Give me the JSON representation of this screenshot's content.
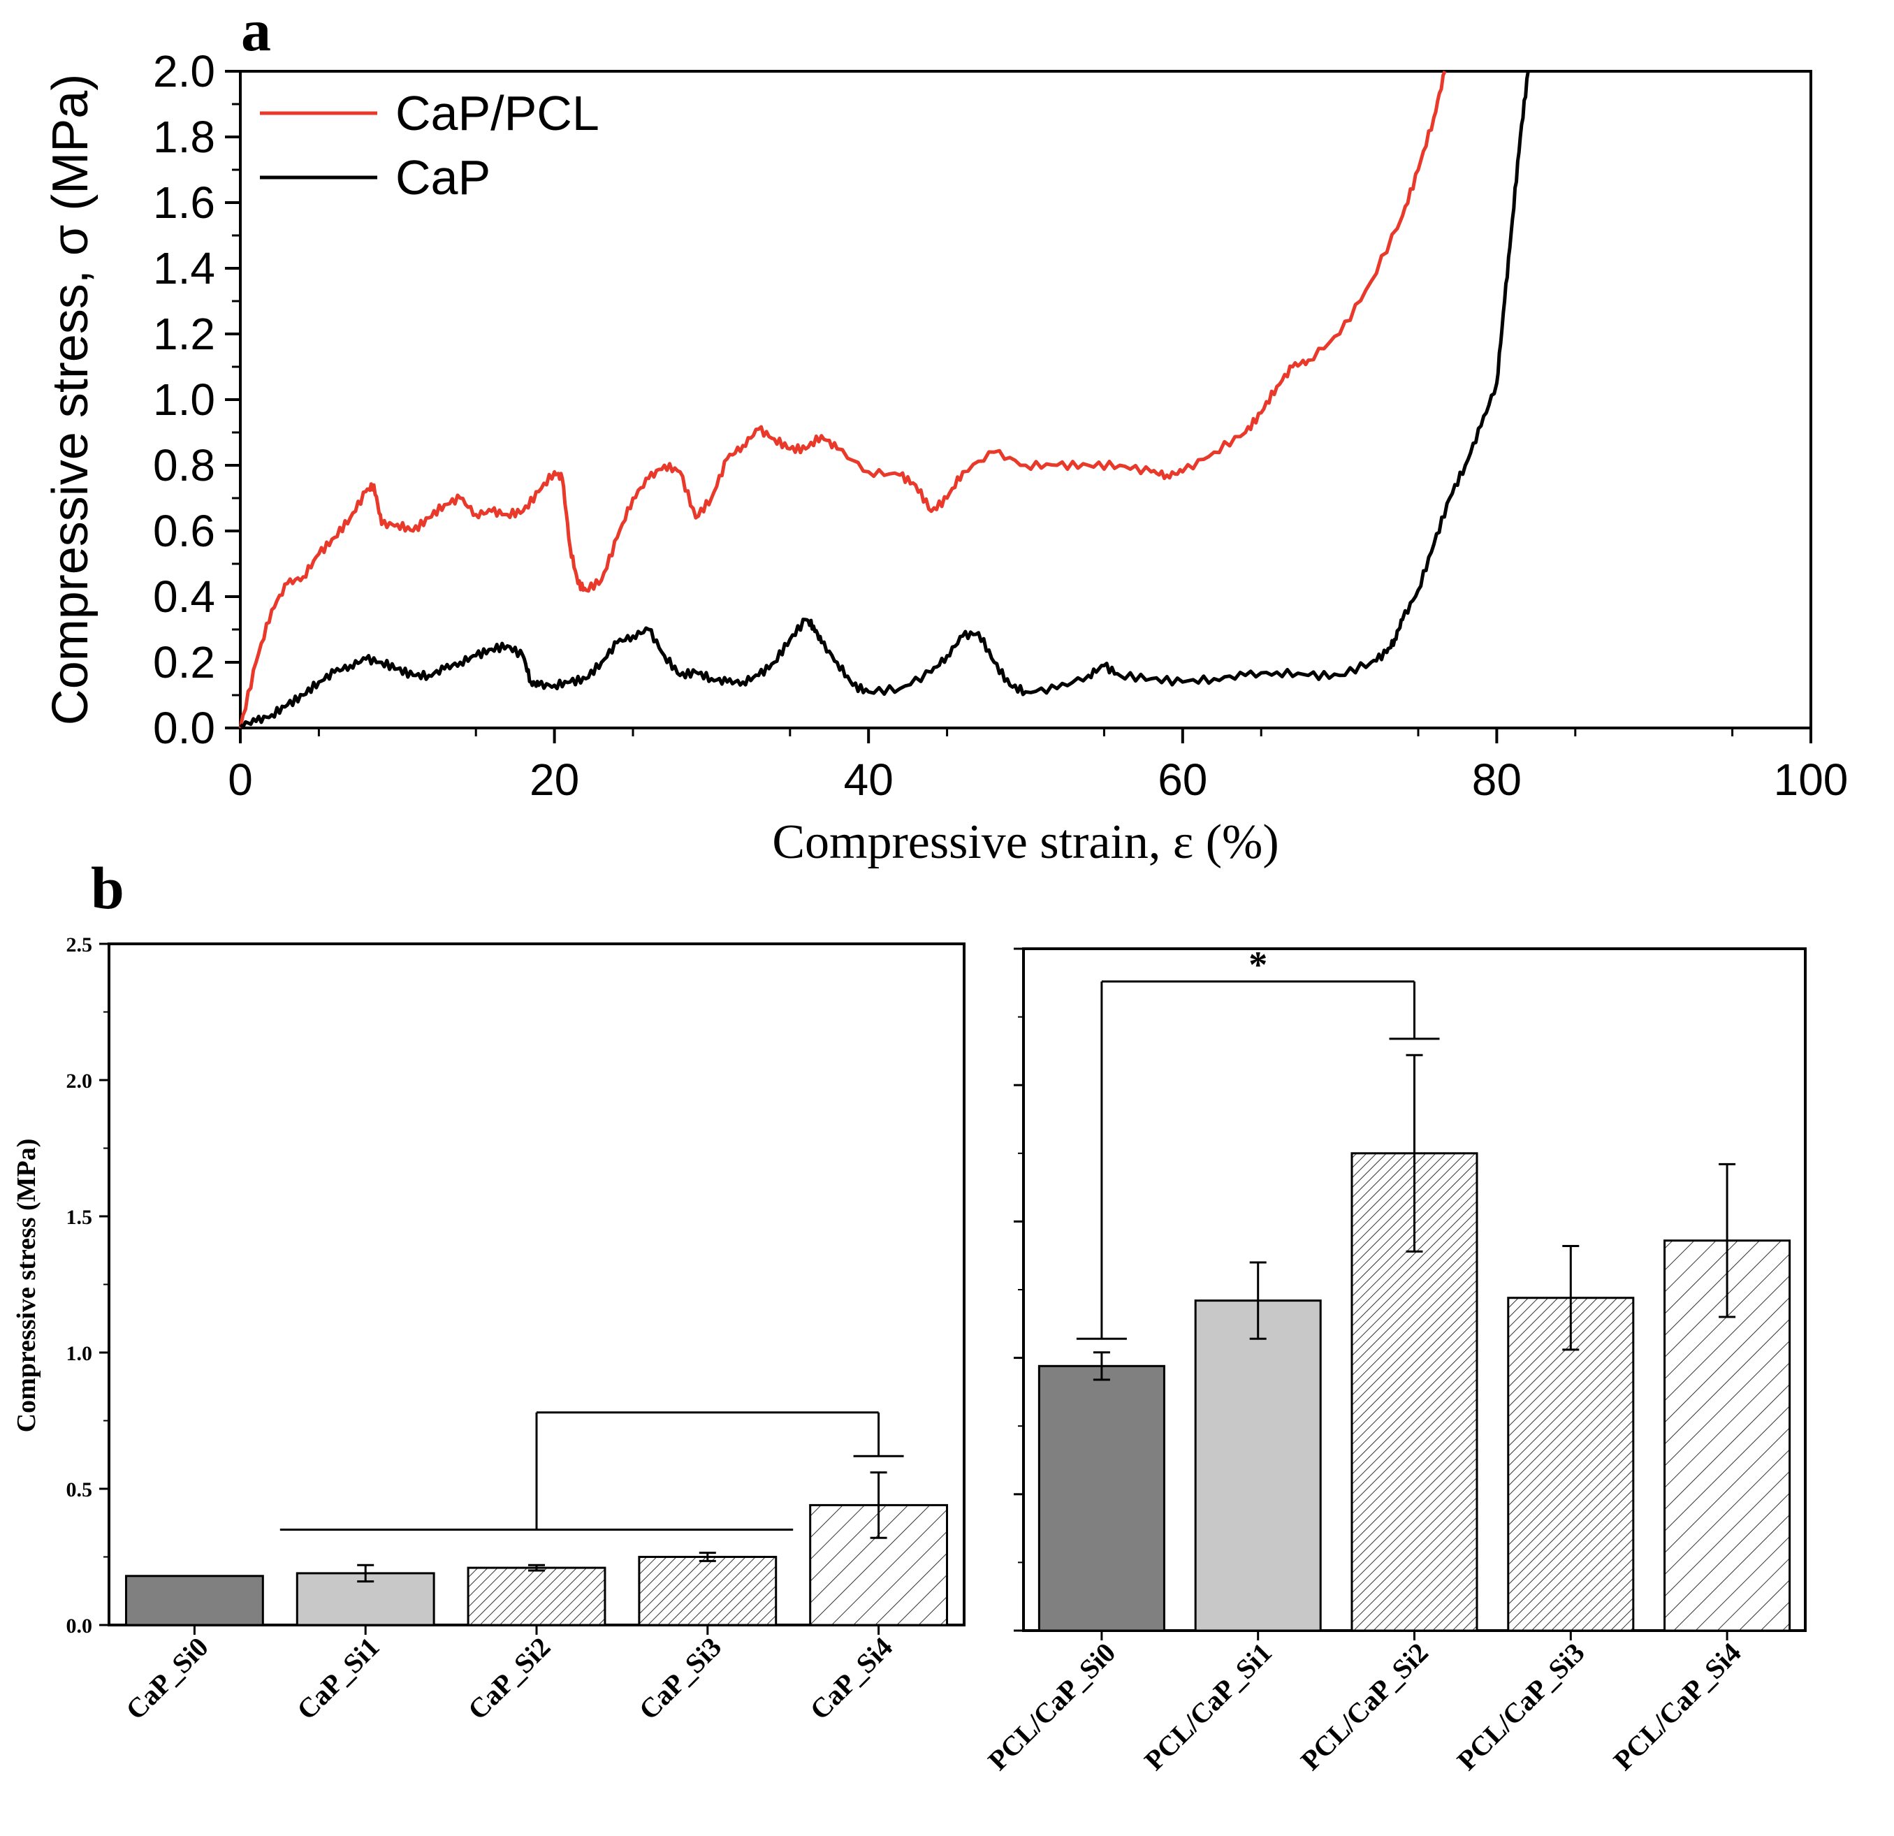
{
  "panels": {
    "a": "a",
    "b": "b"
  },
  "chart_data": [
    {
      "type": "line",
      "panel": "a",
      "xlabel": "Compressive strain, ε (%)",
      "ylabel": "Compressive stress, σ (MPa)",
      "xlim": [
        0,
        100
      ],
      "ylim": [
        0,
        2.0
      ],
      "xticks": [
        0,
        20,
        40,
        60,
        80,
        100
      ],
      "yticks": [
        0.0,
        0.2,
        0.4,
        0.6,
        0.8,
        1.0,
        1.2,
        1.4,
        1.6,
        1.8,
        2.0
      ],
      "legend_position": "top-left",
      "series": [
        {
          "name": "CaP/PCL",
          "color": "#e8392a",
          "x": [
            0,
            1,
            2,
            3,
            4,
            5,
            6,
            7,
            8,
            8.5,
            9,
            10,
            11,
            12,
            13,
            14,
            15,
            16,
            17,
            18,
            19,
            20,
            20.5,
            21,
            21.5,
            22,
            23,
            24,
            25,
            26,
            27,
            28,
            29,
            30,
            31,
            32,
            33,
            34,
            35,
            36,
            37,
            38,
            40,
            42,
            43,
            44,
            45,
            46,
            48,
            50,
            52,
            54,
            56,
            58,
            59,
            60,
            62,
            64,
            65,
            66,
            67,
            68,
            70,
            72,
            74,
            75,
            76,
            76.7
          ],
          "y": [
            0.0,
            0.2,
            0.36,
            0.44,
            0.46,
            0.53,
            0.58,
            0.64,
            0.72,
            0.74,
            0.62,
            0.62,
            0.6,
            0.64,
            0.68,
            0.7,
            0.65,
            0.66,
            0.65,
            0.66,
            0.72,
            0.78,
            0.76,
            0.55,
            0.44,
            0.42,
            0.45,
            0.58,
            0.7,
            0.76,
            0.8,
            0.78,
            0.64,
            0.7,
            0.82,
            0.86,
            0.91,
            0.88,
            0.85,
            0.85,
            0.89,
            0.85,
            0.78,
            0.77,
            0.74,
            0.66,
            0.7,
            0.78,
            0.84,
            0.8,
            0.8,
            0.8,
            0.8,
            0.78,
            0.77,
            0.78,
            0.84,
            0.9,
            0.96,
            1.04,
            1.1,
            1.12,
            1.2,
            1.36,
            1.56,
            1.7,
            1.86,
            2.0
          ]
        },
        {
          "name": "CaP",
          "color": "#000000",
          "x": [
            0,
            1,
            2,
            3,
            4,
            5,
            6,
            7,
            8,
            9,
            10,
            11,
            12,
            13,
            14,
            15,
            16,
            17,
            18,
            18.5,
            19,
            20,
            21,
            22,
            23,
            24,
            25,
            26,
            27,
            28,
            29,
            30,
            31,
            32,
            33,
            34,
            35,
            36,
            36.5,
            37,
            38,
            39,
            40,
            42,
            44,
            45,
            46,
            47,
            48,
            49,
            50,
            52,
            54,
            55,
            56,
            58,
            60,
            62,
            64,
            66,
            68,
            70,
            72,
            73,
            73.5,
            74,
            75,
            76,
            77,
            78,
            79,
            80,
            80.5,
            81,
            81.5,
            82
          ],
          "y": [
            0.01,
            0.02,
            0.04,
            0.07,
            0.1,
            0.14,
            0.17,
            0.19,
            0.21,
            0.2,
            0.18,
            0.16,
            0.16,
            0.18,
            0.2,
            0.22,
            0.24,
            0.25,
            0.22,
            0.14,
            0.13,
            0.13,
            0.14,
            0.15,
            0.2,
            0.26,
            0.28,
            0.3,
            0.22,
            0.16,
            0.17,
            0.15,
            0.14,
            0.14,
            0.16,
            0.2,
            0.27,
            0.33,
            0.31,
            0.26,
            0.2,
            0.13,
            0.11,
            0.12,
            0.17,
            0.22,
            0.28,
            0.29,
            0.2,
            0.13,
            0.11,
            0.12,
            0.16,
            0.19,
            0.16,
            0.15,
            0.14,
            0.15,
            0.16,
            0.17,
            0.16,
            0.16,
            0.2,
            0.23,
            0.27,
            0.33,
            0.42,
            0.56,
            0.7,
            0.8,
            0.92,
            1.05,
            1.3,
            1.55,
            1.8,
            2.0
          ]
        }
      ]
    },
    {
      "type": "bar",
      "panel": "b-left",
      "ylabel": "Compressive stress (MPa)",
      "ylim": [
        0,
        2.5
      ],
      "yticks": [
        "0.0",
        "0.5",
        "1.0",
        "1.5",
        "2.0",
        "2.5"
      ],
      "categories": [
        "CaP_Si0",
        "CaP_Si1",
        "CaP_Si2",
        "CaP_Si3",
        "CaP_Si4"
      ],
      "values": [
        0.18,
        0.19,
        0.21,
        0.25,
        0.44
      ],
      "errors": [
        0.0,
        0.03,
        0.01,
        0.015,
        0.12
      ],
      "fills": [
        "dark-gray",
        "light-gray",
        "dense-hatch",
        "dense-hatch",
        "sparse-hatch"
      ],
      "brackets": [
        {
          "from_index": 0.5,
          "to_index": 3.5,
          "y": 0.35,
          "type": "horizontal-line"
        },
        {
          "from_index": 2,
          "to_index": 4,
          "y": 0.78,
          "type": "bracket",
          "cap_y": 0.62
        }
      ]
    },
    {
      "type": "bar",
      "panel": "b-right",
      "ylim": [
        0,
        2.5
      ],
      "categories": [
        "PCL/CaP_Si0",
        "PCL/CaP_Si1",
        "PCL/CaP_Si2",
        "PCL/CaP_Si3",
        "PCL/CaP_Si4"
      ],
      "values": [
        0.97,
        1.21,
        1.75,
        1.22,
        1.43
      ],
      "errors": [
        0.05,
        0.14,
        0.36,
        0.19,
        0.28
      ],
      "fills": [
        "dark-gray",
        "light-gray",
        "dense-hatch",
        "dense-hatch",
        "sparse-hatch"
      ],
      "brackets": [
        {
          "from_index": 0,
          "to_index": 2,
          "y": 2.38,
          "type": "bracket",
          "cap_from_y": 1.07,
          "cap_to_y": 2.17,
          "label": "*"
        }
      ]
    }
  ]
}
